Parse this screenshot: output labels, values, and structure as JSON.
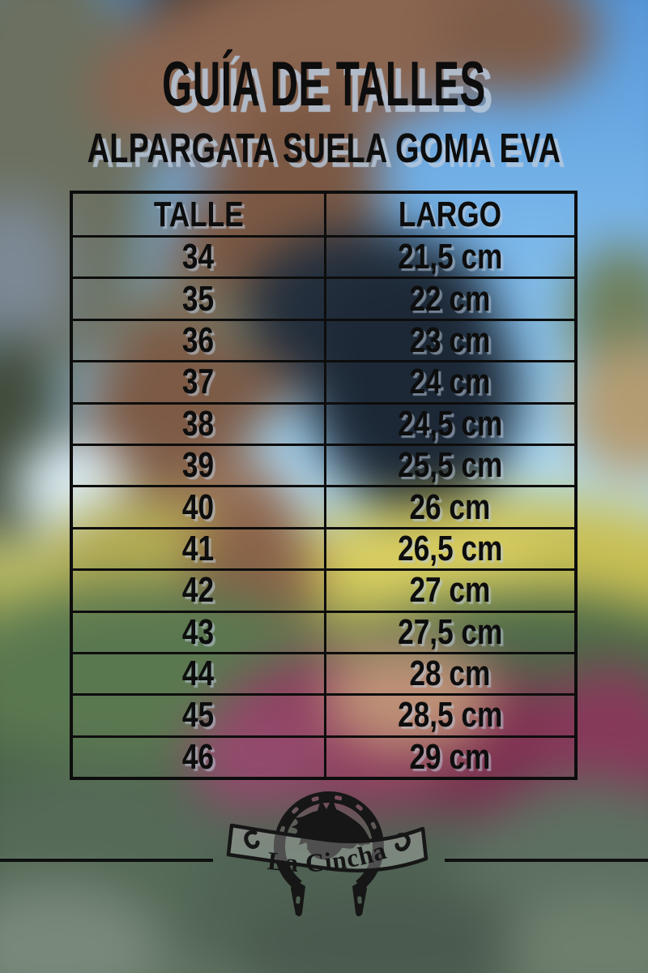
{
  "title": "GUÍA DE TALLES",
  "subtitle": "ALPARGATA SUELA GOMA EVA",
  "chart_data": {
    "type": "table",
    "title": "GUÍA DE TALLES",
    "subtitle": "ALPARGATA SUELA GOMA EVA",
    "columns": [
      "TALLE",
      "LARGO"
    ],
    "rows": [
      [
        "34",
        "21,5 cm"
      ],
      [
        "35",
        "22 cm"
      ],
      [
        "36",
        "23 cm"
      ],
      [
        "37",
        "24 cm"
      ],
      [
        "38",
        "24,5 cm"
      ],
      [
        "39",
        "25,5 cm"
      ],
      [
        "40",
        "26 cm"
      ],
      [
        "41",
        "26,5 cm"
      ],
      [
        "42",
        "27 cm"
      ],
      [
        "43",
        "27,5 cm"
      ],
      [
        "44",
        "28 cm"
      ],
      [
        "45",
        "28,5 cm"
      ],
      [
        "46",
        "29 cm"
      ]
    ]
  },
  "logo": {
    "brand": "La Cincha",
    "icon": "horseshoe-horse"
  },
  "colors": {
    "text": "#0d0d0d",
    "table_border": "#0d0d0d",
    "text_shadow": "#b9c9dc"
  }
}
